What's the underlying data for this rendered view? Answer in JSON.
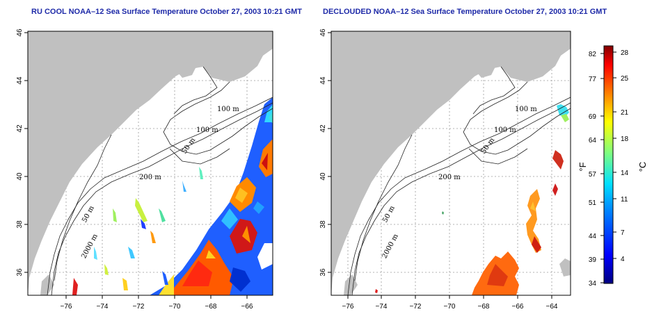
{
  "panels": [
    {
      "title": "RU COOL NOAA–12 Sea Surface Temperature October 27, 2003 10:21 GMT",
      "contour_labels": [
        "100 m",
        "100 m",
        "50 m",
        "200 m",
        "50 m",
        "2000 m"
      ]
    },
    {
      "title": "DECLOUDED NOAA–12 Sea Surface Temperature October 27, 2003 10:21 GMT",
      "contour_labels": [
        "100 m",
        "100 m",
        "50 m",
        "200 m",
        "50 m",
        "2000 m"
      ]
    }
  ],
  "axes": {
    "lon_ticks": [
      "−76",
      "−74",
      "−72",
      "−70",
      "−68",
      "−66",
      "−64"
    ],
    "lat_ticks": [
      "36",
      "38",
      "40",
      "42",
      "44",
      "46"
    ]
  },
  "colorbar": {
    "fahrenheit_label": "°F",
    "celsius_label": "°C",
    "fahrenheit_ticks": [
      "82",
      "77",
      "69",
      "64",
      "57",
      "51",
      "44",
      "39",
      "34"
    ],
    "celsius_ticks": [
      "28",
      "25",
      "21",
      "18",
      "14",
      "11",
      "7",
      "4"
    ]
  },
  "colors": {
    "land": "#c0c0c0",
    "ocean": "#ffffff",
    "title": "#1e2aa8"
  }
}
